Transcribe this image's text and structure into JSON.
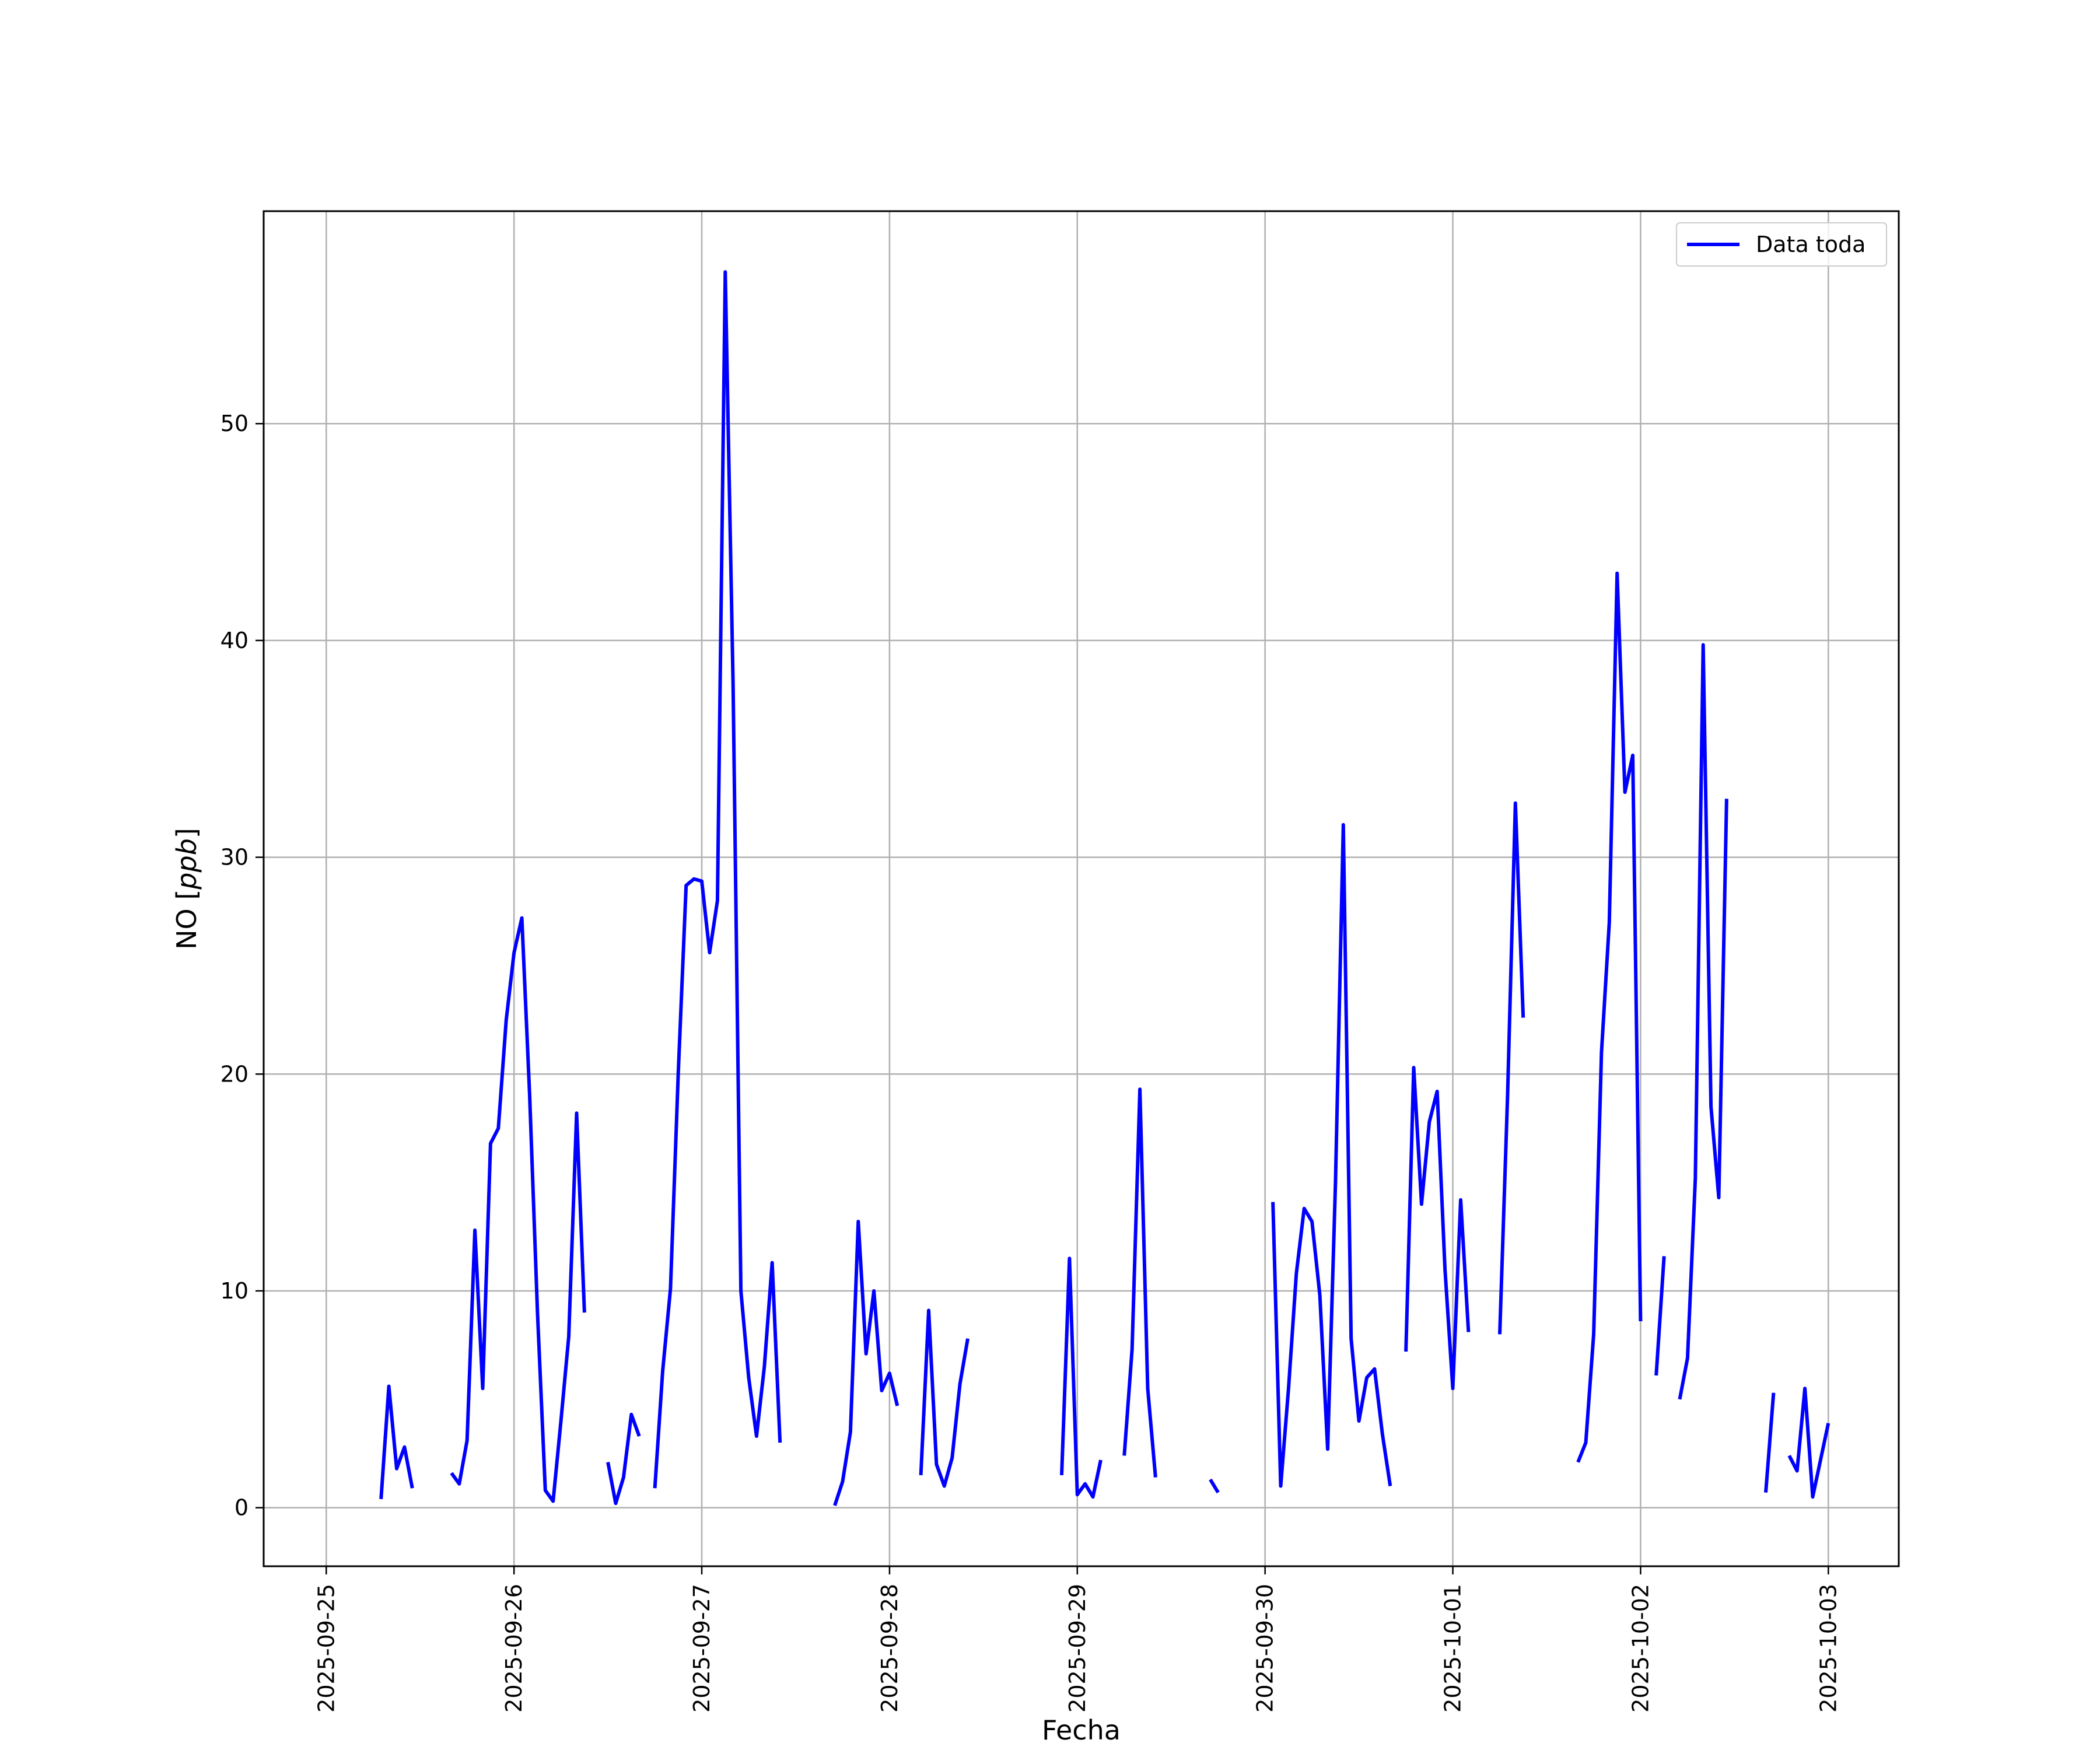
{
  "colors": {
    "line": "#0000ff",
    "grid": "#b0b0b0",
    "axes": "#000000",
    "background": "#ffffff"
  },
  "chart_data": {
    "type": "line",
    "title": "",
    "xlabel": "Fecha",
    "ylabel_prefix": "NO [",
    "ylabel_italic": "ppb",
    "ylabel_suffix": "]",
    "xlim": [
      "2025-09-24T16:00",
      "2025-10-03T09:00"
    ],
    "ylim": [
      -2.7,
      59.8
    ],
    "x_ticks": [
      "2025-09-25",
      "2025-09-26",
      "2025-09-27",
      "2025-09-28",
      "2025-09-29",
      "2025-09-30",
      "2025-10-01",
      "2025-10-02",
      "2025-10-03"
    ],
    "y_ticks": [
      0,
      10,
      20,
      30,
      40,
      50
    ],
    "grid": true,
    "legend_position": "top-right",
    "series": [
      {
        "name": "Data toda",
        "segments": [
          [
            [
              "2025-09-25T07:00",
              0.4
            ],
            [
              "2025-09-25T08:00",
              5.6
            ],
            [
              "2025-09-25T09:00",
              1.8
            ],
            [
              "2025-09-25T10:00",
              2.8
            ],
            [
              "2025-09-25T11:00",
              0.9
            ]
          ],
          [
            [
              "2025-09-25T16:00",
              1.6
            ],
            [
              "2025-09-25T17:00",
              1.1
            ],
            [
              "2025-09-25T18:00",
              3.1
            ],
            [
              "2025-09-25T19:00",
              12.8
            ],
            [
              "2025-09-25T20:00",
              5.5
            ],
            [
              "2025-09-25T21:00",
              16.8
            ],
            [
              "2025-09-25T22:00",
              17.5
            ],
            [
              "2025-09-25T23:00",
              22.5
            ],
            [
              "2025-09-26T00:00",
              25.6
            ],
            [
              "2025-09-26T01:00",
              27.2
            ],
            [
              "2025-09-26T02:00",
              19.0
            ],
            [
              "2025-09-26T03:00",
              9.0
            ],
            [
              "2025-09-26T04:00",
              0.8
            ],
            [
              "2025-09-26T05:00",
              0.3
            ],
            [
              "2025-09-26T06:00",
              4.0
            ],
            [
              "2025-09-26T07:00",
              7.9
            ],
            [
              "2025-09-26T08:00",
              18.2
            ],
            [
              "2025-09-26T09:00",
              9.0
            ]
          ],
          [
            [
              "2025-09-26T12:00",
              2.1
            ],
            [
              "2025-09-26T13:00",
              0.2
            ],
            [
              "2025-09-26T14:00",
              1.4
            ],
            [
              "2025-09-26T15:00",
              4.3
            ],
            [
              "2025-09-26T16:00",
              3.3
            ]
          ],
          [
            [
              "2025-09-26T18:00",
              0.9
            ],
            [
              "2025-09-26T19:00",
              6.3
            ],
            [
              "2025-09-26T20:00",
              10.1
            ],
            [
              "2025-09-26T21:00",
              20.1
            ],
            [
              "2025-09-26T22:00",
              28.7
            ],
            [
              "2025-09-26T23:00",
              29.0
            ],
            [
              "2025-09-27T00:00",
              28.9
            ],
            [
              "2025-09-27T01:00",
              25.6
            ],
            [
              "2025-09-27T02:00",
              28.0
            ],
            [
              "2025-09-27T03:00",
              57.0
            ],
            [
              "2025-09-27T04:00",
              38.0
            ],
            [
              "2025-09-27T05:00",
              10.0
            ],
            [
              "2025-09-27T06:00",
              6.0
            ],
            [
              "2025-09-27T07:00",
              3.3
            ],
            [
              "2025-09-27T08:00",
              6.5
            ],
            [
              "2025-09-27T09:00",
              11.3
            ],
            [
              "2025-09-27T10:00",
              3.0
            ]
          ],
          [
            [
              "2025-09-27T17:00",
              0.1
            ],
            [
              "2025-09-27T18:00",
              1.2
            ],
            [
              "2025-09-27T19:00",
              3.5
            ],
            [
              "2025-09-27T20:00",
              13.2
            ],
            [
              "2025-09-27T21:00",
              7.1
            ],
            [
              "2025-09-27T22:00",
              10.0
            ],
            [
              "2025-09-27T23:00",
              5.4
            ],
            [
              "2025-09-28T00:00",
              6.2
            ],
            [
              "2025-09-28T01:00",
              4.7
            ]
          ],
          [
            [
              "2025-09-28T04:00",
              1.5
            ],
            [
              "2025-09-28T05:00",
              9.1
            ],
            [
              "2025-09-28T06:00",
              2.0
            ],
            [
              "2025-09-28T07:00",
              1.0
            ],
            [
              "2025-09-28T08:00",
              2.3
            ],
            [
              "2025-09-28T09:00",
              5.7
            ],
            [
              "2025-09-28T10:00",
              7.8
            ]
          ],
          [
            [
              "2025-09-28T22:00",
              1.5
            ],
            [
              "2025-09-28T23:00",
              11.5
            ],
            [
              "2025-09-29T00:00",
              0.6
            ],
            [
              "2025-09-29T01:00",
              1.1
            ],
            [
              "2025-09-29T02:00",
              0.5
            ],
            [
              "2025-09-29T03:00",
              2.2
            ]
          ],
          [
            [
              "2025-09-29T06:00",
              2.4
            ],
            [
              "2025-09-29T07:00",
              7.3
            ],
            [
              "2025-09-29T08:00",
              19.3
            ],
            [
              "2025-09-29T09:00",
              5.5
            ],
            [
              "2025-09-29T10:00",
              1.4
            ]
          ],
          [
            [
              "2025-09-29T17:00",
              1.3
            ],
            [
              "2025-09-29T18:00",
              0.7
            ]
          ],
          [
            [
              "2025-09-30T01:00",
              14.1
            ],
            [
              "2025-09-30T02:00",
              1.0
            ],
            [
              "2025-09-30T03:00",
              5.5
            ],
            [
              "2025-09-30T04:00",
              10.8
            ],
            [
              "2025-09-30T05:00",
              13.8
            ],
            [
              "2025-09-30T06:00",
              13.2
            ],
            [
              "2025-09-30T07:00",
              9.8
            ],
            [
              "2025-09-30T08:00",
              2.7
            ],
            [
              "2025-09-30T09:00",
              15.0
            ],
            [
              "2025-09-30T10:00",
              31.5
            ],
            [
              "2025-09-30T11:00",
              7.8
            ],
            [
              "2025-09-30T12:00",
              4.0
            ],
            [
              "2025-09-30T13:00",
              6.0
            ],
            [
              "2025-09-30T14:00",
              6.4
            ],
            [
              "2025-09-30T15:00",
              3.4
            ],
            [
              "2025-09-30T16:00",
              1.0
            ]
          ],
          [
            [
              "2025-09-30T18:00",
              7.2
            ],
            [
              "2025-09-30T19:00",
              20.3
            ],
            [
              "2025-09-30T20:00",
              14.0
            ],
            [
              "2025-09-30T21:00",
              17.8
            ],
            [
              "2025-09-30T22:00",
              19.2
            ],
            [
              "2025-09-30T23:00",
              11.0
            ],
            [
              "2025-10-01T00:00",
              5.5
            ],
            [
              "2025-10-01T01:00",
              14.2
            ],
            [
              "2025-10-01T02:00",
              8.1
            ]
          ],
          [
            [
              "2025-10-01T06:00",
              8.0
            ],
            [
              "2025-10-01T07:00",
              19.0
            ],
            [
              "2025-10-01T08:00",
              32.5
            ],
            [
              "2025-10-01T09:00",
              22.6
            ]
          ],
          [
            [
              "2025-10-01T16:00",
              2.1
            ],
            [
              "2025-10-01T17:00",
              3.0
            ],
            [
              "2025-10-01T18:00",
              8.0
            ],
            [
              "2025-10-01T19:00",
              21.0
            ],
            [
              "2025-10-01T20:00",
              27.0
            ],
            [
              "2025-10-01T21:00",
              43.1
            ],
            [
              "2025-10-01T22:00",
              33.0
            ],
            [
              "2025-10-01T23:00",
              34.7
            ],
            [
              "2025-10-02T00:00",
              8.6
            ]
          ],
          [
            [
              "2025-10-02T02:00",
              6.1
            ],
            [
              "2025-10-02T03:00",
              11.6
            ]
          ],
          [
            [
              "2025-10-02T05:00",
              5.0
            ],
            [
              "2025-10-02T06:00",
              6.9
            ],
            [
              "2025-10-02T07:00",
              15.2
            ],
            [
              "2025-10-02T08:00",
              39.8
            ],
            [
              "2025-10-02T09:00",
              18.5
            ],
            [
              "2025-10-02T10:00",
              14.3
            ],
            [
              "2025-10-02T11:00",
              32.7
            ]
          ],
          [
            [
              "2025-10-02T16:00",
              0.7
            ],
            [
              "2025-10-02T17:00",
              5.3
            ]
          ],
          [
            [
              "2025-10-02T19:00",
              2.4
            ],
            [
              "2025-10-02T20:00",
              1.7
            ],
            [
              "2025-10-02T21:00",
              5.5
            ],
            [
              "2025-10-02T22:00",
              0.5
            ],
            [
              "2025-10-02T23:00",
              2.2
            ],
            [
              "2025-10-03T00:00",
              3.9
            ]
          ]
        ]
      }
    ]
  }
}
